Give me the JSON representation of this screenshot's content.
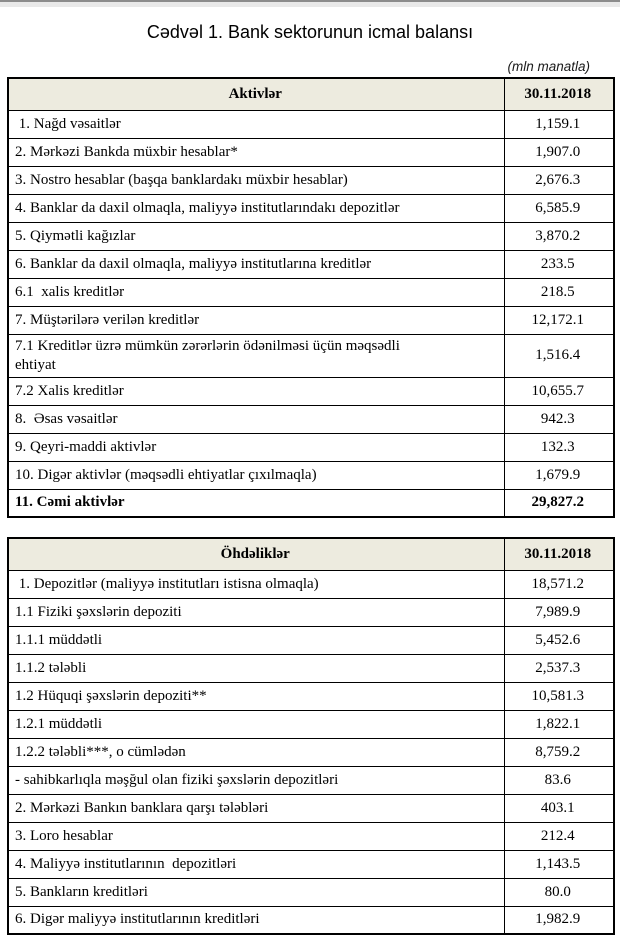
{
  "page": {
    "title": "Cədvəl 1. Bank sektorunun icmal balansı",
    "unit_note": "(mln manatla)"
  },
  "assets_table": {
    "header": {
      "label": "Aktivlər",
      "date": "30.11.2018"
    },
    "rows": [
      {
        "label": " 1. Nağd vəsaitlər",
        "value": "1,159.1"
      },
      {
        "label": "2. Mərkəzi Bankda müxbir hesablar*",
        "value": "1,907.0"
      },
      {
        "label": "3. Nostro hesablar (başqa banklardakı müxbir hesablar)",
        "value": "2,676.3"
      },
      {
        "label": "4. Banklar da daxil olmaqla, maliyyə institutlarındakı depozitlər",
        "value": "6,585.9"
      },
      {
        "label": "5. Qiymətli kağızlar",
        "value": "3,870.2"
      },
      {
        "label": "6. Banklar da daxil olmaqla, maliyyə institutlarına kreditlər",
        "value": "233.5"
      },
      {
        "label": "6.1  xalis kreditlər",
        "value": "218.5"
      },
      {
        "label": "7. Müştərilərə verilən kreditlər",
        "value": "12,172.1"
      },
      {
        "label": "7.1 Kreditlər üzrə mümkün zərərlərin ödənilməsi üçün məqsədli\nehtiyat",
        "value": "1,516.4"
      },
      {
        "label": "7.2 Xalis kreditlər",
        "value": "10,655.7"
      },
      {
        "label": "8.  Əsas vəsaitlər",
        "value": "942.3"
      },
      {
        "label": "9. Qeyri-maddi aktivlər",
        "value": "132.3"
      },
      {
        "label": "10. Digər aktivlər (məqsədli ehtiyatlar çıxılmaqla)",
        "value": "1,679.9"
      },
      {
        "label": "11. Cəmi aktivlər",
        "value": "29,827.2"
      }
    ]
  },
  "liabilities_table": {
    "header": {
      "label": "Öhdəliklər",
      "date": "30.11.2018"
    },
    "rows": [
      {
        "label": " 1. Depozitlər (maliyyə institutları istisna olmaqla)",
        "value": "18,571.2"
      },
      {
        "label": "1.1 Fiziki şəxslərin depoziti",
        "value": "7,989.9"
      },
      {
        "label": "1.1.1 müddətli",
        "value": "5,452.6"
      },
      {
        "label": "1.1.2 tələbli",
        "value": "2,537.3"
      },
      {
        "label": "1.2 Hüquqi şəxslərin depoziti**",
        "value": "10,581.3"
      },
      {
        "label": "1.2.1 müddətli",
        "value": "1,822.1"
      },
      {
        "label": "1.2.2 tələbli***, o cümlədən",
        "value": "8,759.2"
      },
      {
        "label": "- sahibkarlıqla məşğul olan fiziki şəxslərin depozitləri",
        "value": "83.6"
      },
      {
        "label": "2. Mərkəzi Bankın banklara qarşı tələbləri",
        "value": "403.1"
      },
      {
        "label": "3. Loro hesablar",
        "value": "212.4"
      },
      {
        "label": "4. Maliyyə institutlarının  depozitləri",
        "value": "1,143.5"
      },
      {
        "label": "5. Bankların kreditləri",
        "value": "80.0"
      },
      {
        "label": "6. Digər maliyyə institutlarının kreditləri",
        "value": "1,982.9"
      }
    ]
  },
  "colors": {
    "header_bg": "#edebdf",
    "border": "#000000"
  }
}
